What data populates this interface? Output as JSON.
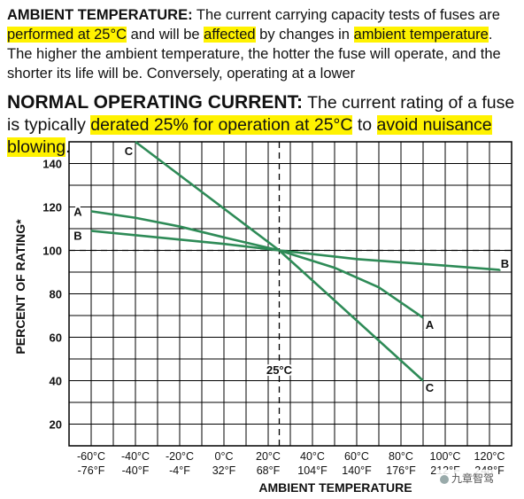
{
  "para1": {
    "heading": "AMBIENT TEMPERATURE:",
    "segments": [
      {
        "t": " The current carrying capacity tests of fuses are ",
        "hl": false
      },
      {
        "t": "performed at 25°C",
        "hl": true
      },
      {
        "t": " and will be ",
        "hl": false
      },
      {
        "t": "affected",
        "hl": true
      },
      {
        "t": " by changes in ",
        "hl": false
      },
      {
        "t": "ambient temperature",
        "hl": true
      },
      {
        "t": ". The higher the ambient temperature, the hotter the fuse will operate, and the shorter its life will be. Conversely, operating at a lower",
        "hl": false
      }
    ]
  },
  "para2": {
    "heading": "NORMAL OPERATING CURRENT:",
    "segments": [
      {
        "t": " The current rating of a fuse is typically ",
        "hl": false
      },
      {
        "t": "derated 25% for operation at 25°C",
        "hl": true
      },
      {
        "t": " to ",
        "hl": false
      },
      {
        "t": "avoid nuisance blowing",
        "hl": true
      },
      {
        "t": ".",
        "hl": false
      }
    ]
  },
  "colors": {
    "highlight": "#fff200",
    "curve": "#2e8b57",
    "grid": "#000000"
  },
  "chart_data": {
    "type": "line",
    "xlabel": "AMBIENT TEMPERATURE",
    "ylabel": "PERCENT OF RATING*",
    "xlim": [
      -70,
      130
    ],
    "ylim": [
      10,
      150
    ],
    "x_ticks": [
      -60,
      -40,
      -20,
      0,
      20,
      40,
      60,
      80,
      100,
      120
    ],
    "x_tick_labels_c": [
      "-60°C",
      "-40°C",
      "-20°C",
      "0°C",
      "20°C",
      "40°C",
      "60°C",
      "80°C",
      "100°C",
      "120°C"
    ],
    "x_tick_labels_f": [
      "-76°F",
      "-40°F",
      "-4°F",
      "32°F",
      "68°F",
      "104°F",
      "140°F",
      "176°F",
      "212°F",
      "248°F"
    ],
    "y_ticks": [
      20,
      40,
      60,
      80,
      100,
      120,
      140
    ],
    "grid": true,
    "reference_lines": {
      "x": 25,
      "y": 100,
      "x_label": "25°C"
    },
    "series": [
      {
        "name": "A",
        "x": [
          -60,
          -40,
          -20,
          0,
          25,
          50,
          70,
          90
        ],
        "y": [
          118,
          115,
          111,
          106,
          100,
          92,
          83,
          69
        ]
      },
      {
        "name": "B",
        "x": [
          -60,
          0,
          25,
          60,
          100,
          125
        ],
        "y": [
          109,
          103,
          100,
          96,
          93,
          91
        ]
      },
      {
        "name": "C",
        "x": [
          -40,
          25,
          90
        ],
        "y": [
          150,
          100,
          40
        ]
      }
    ]
  }
}
